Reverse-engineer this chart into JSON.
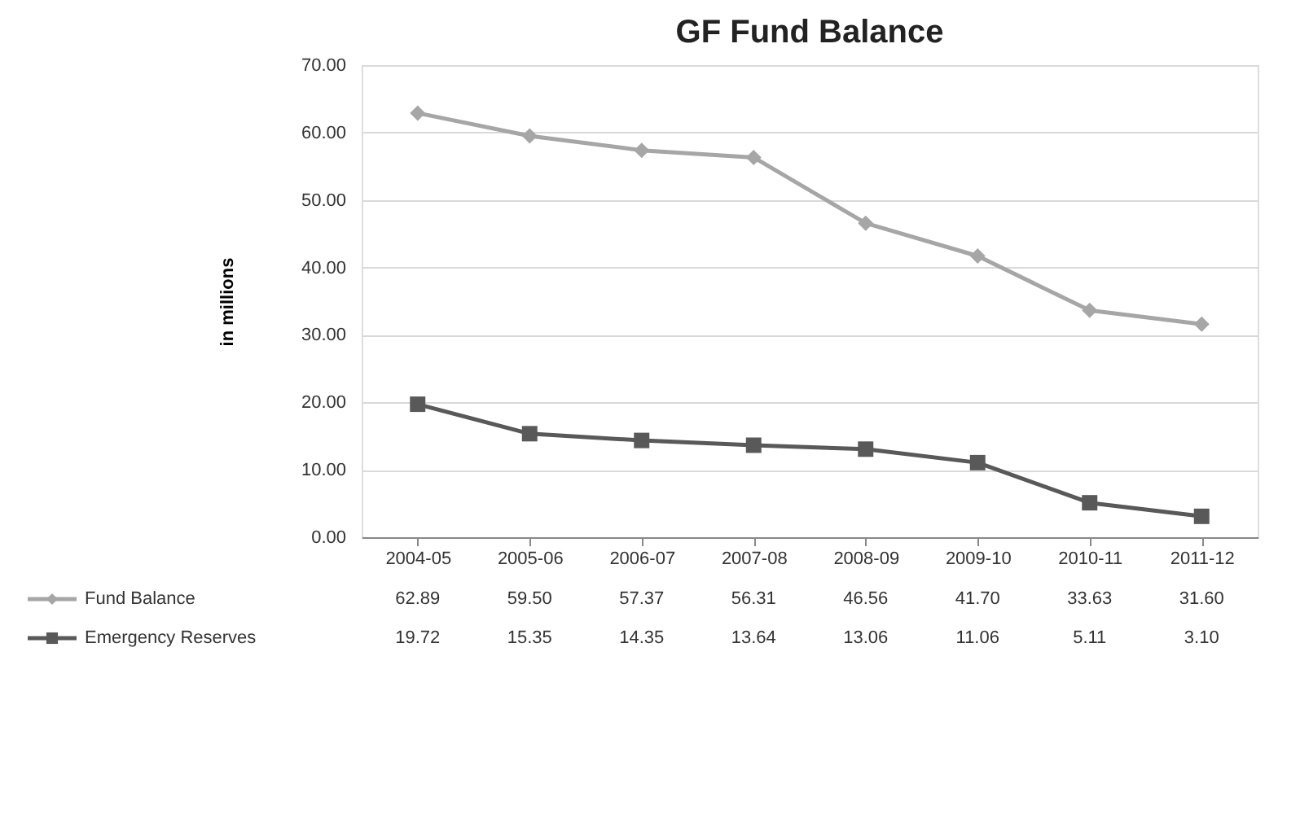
{
  "chart_data": {
    "type": "line",
    "title": "GF Fund Balance",
    "ylabel": "in millions",
    "categories": [
      "2004-05",
      "2005-06",
      "2006-07",
      "2007-08",
      "2008-09",
      "2009-10",
      "2010-11",
      "2011-12"
    ],
    "series": [
      {
        "name": "Fund Balance",
        "color": "#a6a6a6",
        "marker": "diamond",
        "values": [
          62.89,
          59.5,
          57.37,
          56.31,
          46.56,
          41.7,
          33.63,
          31.6
        ],
        "value_labels": [
          "62.89",
          "59.50",
          "57.37",
          "56.31",
          "46.56",
          "41.70",
          "33.63",
          "31.60"
        ]
      },
      {
        "name": "Emergency Reserves",
        "color": "#595959",
        "marker": "square",
        "values": [
          19.72,
          15.35,
          14.35,
          13.64,
          13.06,
          11.06,
          5.11,
          3.1
        ],
        "value_labels": [
          "19.72",
          "15.35",
          "14.35",
          "13.64",
          "13.06",
          "11.06",
          "5.11",
          "3.10"
        ]
      }
    ],
    "ylim": [
      0,
      70
    ],
    "yticks": [
      {
        "value": 0,
        "label": "0.00"
      },
      {
        "value": 10,
        "label": "10.00"
      },
      {
        "value": 20,
        "label": "20.00"
      },
      {
        "value": 30,
        "label": "30.00"
      },
      {
        "value": 40,
        "label": "40.00"
      },
      {
        "value": 50,
        "label": "50.00"
      },
      {
        "value": 60,
        "label": "60.00"
      },
      {
        "value": 70,
        "label": "70.00"
      }
    ],
    "grid": "y",
    "legend": "bottom",
    "line_style": "solid"
  }
}
